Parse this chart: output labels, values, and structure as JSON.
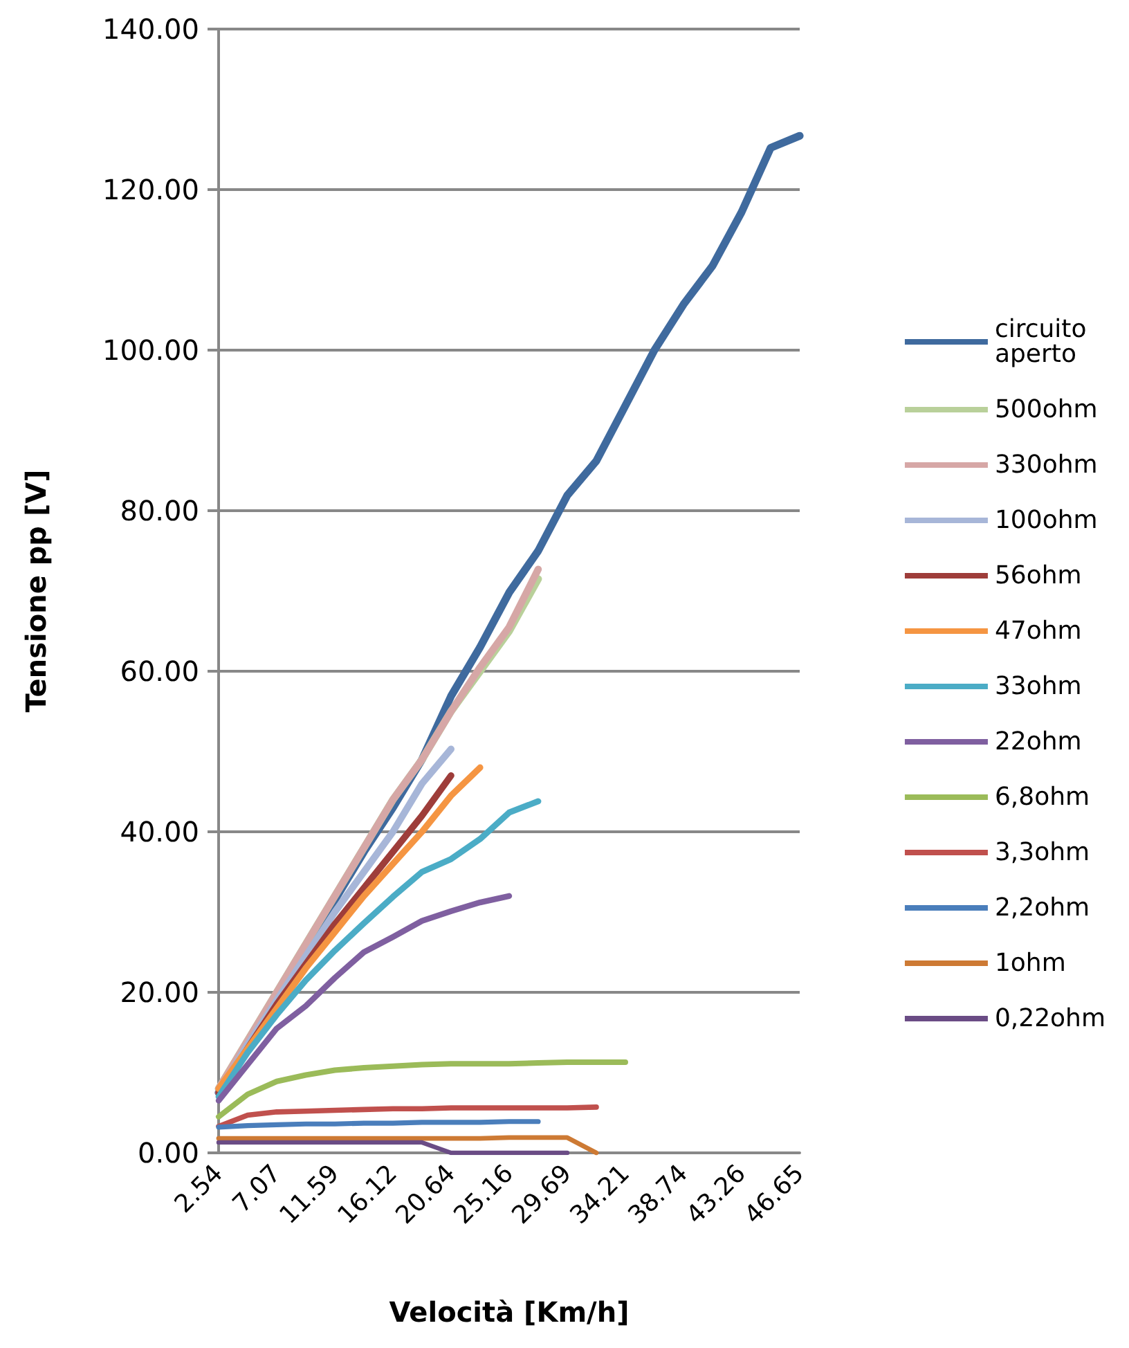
{
  "chart_data": {
    "type": "line",
    "xlabel": "Velocità [Km/h]",
    "ylabel": "Tensione pp [V]",
    "categories": [
      "2.54",
      null,
      "7.07",
      null,
      "11.59",
      null,
      "16.12",
      null,
      "20.64",
      null,
      "25.16",
      null,
      "29.69",
      null,
      "34.21",
      null,
      "38.74",
      null,
      "43.26",
      null,
      "46.65"
    ],
    "ylim": [
      0,
      140
    ],
    "yticks": [
      {
        "value": 0,
        "label": "0.00"
      },
      {
        "value": 20,
        "label": "20.00"
      },
      {
        "value": 40,
        "label": "40.00"
      },
      {
        "value": 60,
        "label": "60.00"
      },
      {
        "value": 80,
        "label": "80.00"
      },
      {
        "value": 100,
        "label": "100.00"
      },
      {
        "value": 120,
        "label": "120.00"
      },
      {
        "value": 140,
        "label": "140.00"
      }
    ],
    "grid": "y",
    "legend": "right",
    "marker": "none",
    "line_style": "solid",
    "series": [
      {
        "name": "circuito aperto",
        "color": "#3f6a9e",
        "values": [
          7.5,
          13,
          19.5,
          25.5,
          31.5,
          37.5,
          43,
          49,
          56.9,
          63,
          69.8,
          75,
          81.9,
          86.2,
          93.1,
          100,
          105.7,
          110.5,
          117.2,
          125.2,
          126.7
        ]
      },
      {
        "name": "500ohm",
        "color": "#b9d09a",
        "values": [
          8,
          14,
          20,
          26,
          32,
          38,
          44,
          49,
          55,
          60,
          65,
          71.5,
          null,
          null,
          null,
          null,
          null,
          null,
          null,
          null,
          null
        ]
      },
      {
        "name": "330ohm",
        "color": "#d6a7a6",
        "values": [
          8,
          14,
          20,
          26,
          32,
          38,
          44,
          49,
          55,
          60.5,
          65.5,
          72.7,
          null,
          null,
          null,
          null,
          null,
          null,
          null,
          null,
          null
        ]
      },
      {
        "name": "100ohm",
        "color": "#a7b6d8",
        "values": [
          7.5,
          13.5,
          19,
          24.5,
          30,
          35,
          40,
          46,
          50.3,
          null,
          null,
          null,
          null,
          null,
          null,
          null,
          null,
          null,
          null,
          null,
          null
        ]
      },
      {
        "name": "56ohm",
        "color": "#9e3d3a",
        "values": [
          7.5,
          13,
          18.5,
          23.5,
          28.5,
          33,
          37.5,
          42,
          47,
          null,
          null,
          null,
          null,
          null,
          null,
          null,
          null,
          null,
          null,
          null,
          null
        ]
      },
      {
        "name": "47ohm",
        "color": "#f59542",
        "values": [
          8,
          13,
          18,
          23,
          27.5,
          32,
          36,
          40,
          44.5,
          48,
          null,
          null,
          null,
          null,
          null,
          null,
          null,
          null,
          null,
          null,
          null
        ]
      },
      {
        "name": "33ohm",
        "color": "#4bacc6",
        "values": [
          7,
          12.5,
          17.2,
          21.5,
          25.2,
          28.6,
          31.9,
          35,
          36.6,
          39.1,
          42.4,
          43.8,
          null,
          null,
          null,
          null,
          null,
          null,
          null,
          null,
          null
        ]
      },
      {
        "name": "22ohm",
        "color": "#7f5fa0",
        "values": [
          6.5,
          11,
          15.5,
          18.3,
          21.8,
          25,
          26.9,
          28.9,
          30.1,
          31.2,
          32,
          null,
          null,
          null,
          null,
          null,
          null,
          null,
          null,
          null,
          null
        ]
      },
      {
        "name": "6,8ohm",
        "color": "#9bbb59",
        "values": [
          4.5,
          7.3,
          8.9,
          9.7,
          10.3,
          10.6,
          10.8,
          11,
          11.1,
          11.1,
          11.1,
          11.2,
          11.3,
          11.3,
          11.3,
          null,
          null,
          null,
          null,
          null,
          null
        ]
      },
      {
        "name": "3,3ohm",
        "color": "#c0504d",
        "values": [
          3.3,
          4.7,
          5.1,
          5.2,
          5.3,
          5.4,
          5.5,
          5.5,
          5.6,
          5.6,
          5.6,
          5.6,
          5.6,
          5.7,
          null,
          null,
          null,
          null,
          null,
          null,
          null
        ]
      },
      {
        "name": "2,2ohm",
        "color": "#4a7ebb",
        "values": [
          3.2,
          3.4,
          3.5,
          3.6,
          3.6,
          3.7,
          3.7,
          3.8,
          3.8,
          3.8,
          3.9,
          3.9,
          null,
          null,
          null,
          null,
          null,
          null,
          null,
          null,
          null
        ]
      },
      {
        "name": "1ohm",
        "color": "#cd7a34",
        "values": [
          1.8,
          1.8,
          1.8,
          1.8,
          1.8,
          1.8,
          1.8,
          1.8,
          1.8,
          1.8,
          1.9,
          1.9,
          1.9,
          0,
          null,
          null,
          null,
          null,
          null,
          null,
          null
        ]
      },
      {
        "name": "0,22ohm",
        "color": "#6a4c85",
        "values": [
          1.3,
          1.3,
          1.3,
          1.3,
          1.3,
          1.3,
          1.3,
          1.3,
          0,
          0,
          0,
          0,
          0,
          null,
          null,
          null,
          null,
          null,
          null,
          null,
          null
        ]
      }
    ]
  }
}
